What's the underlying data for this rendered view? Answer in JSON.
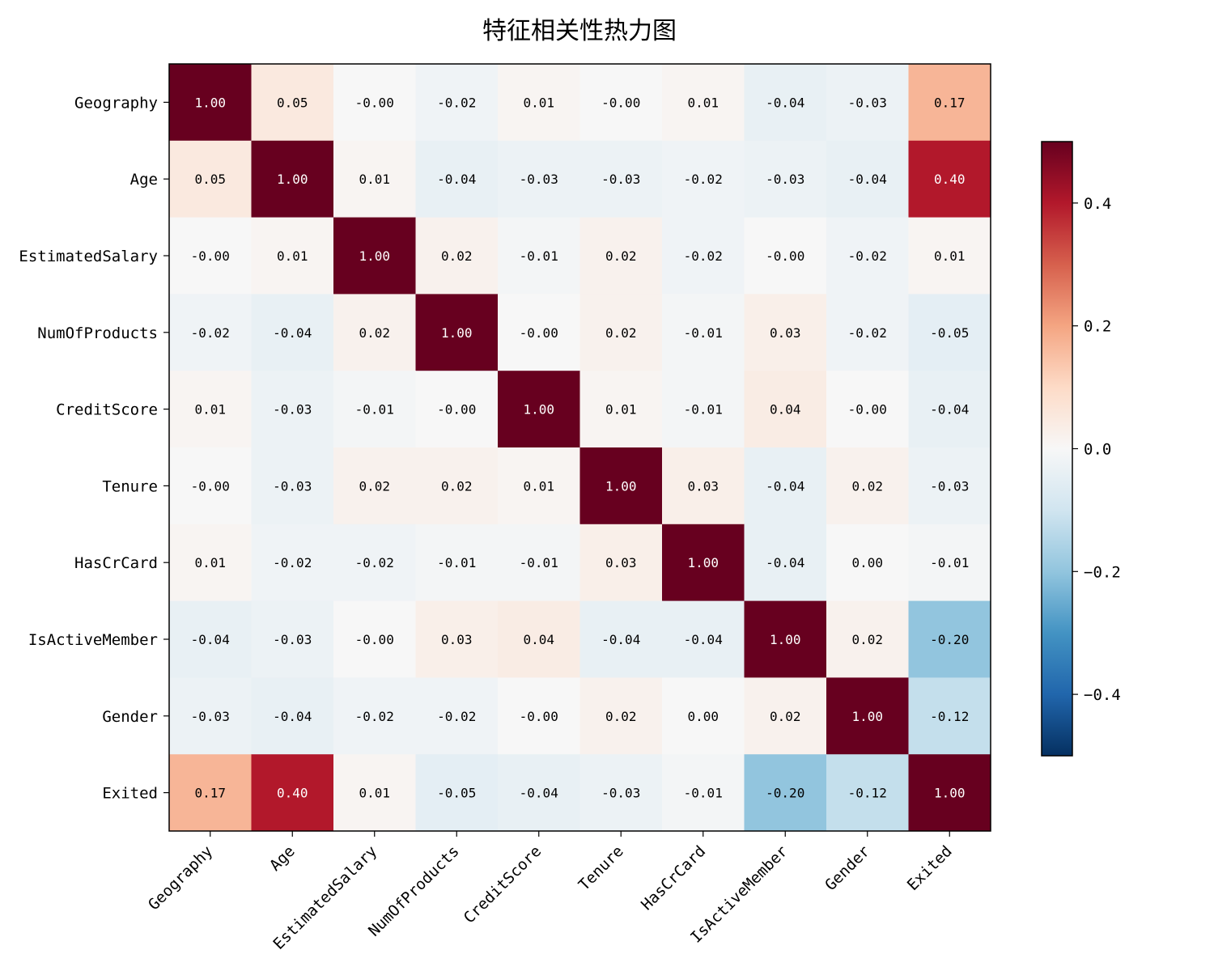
{
  "chart_data": {
    "type": "heatmap",
    "title": "特征相关性热力图",
    "labels": [
      "Geography",
      "Age",
      "EstimatedSalary",
      "NumOfProducts",
      "CreditScore",
      "Tenure",
      "HasCrCard",
      "IsActiveMember",
      "Gender",
      "Exited"
    ],
    "matrix": [
      [
        1.0,
        0.05,
        -0.0,
        -0.02,
        0.01,
        -0.0,
        0.01,
        -0.04,
        -0.03,
        0.17
      ],
      [
        0.05,
        1.0,
        0.01,
        -0.04,
        -0.03,
        -0.03,
        -0.02,
        -0.03,
        -0.04,
        0.4
      ],
      [
        -0.0,
        0.01,
        1.0,
        0.02,
        -0.01,
        0.02,
        -0.02,
        -0.0,
        -0.02,
        0.01
      ],
      [
        -0.02,
        -0.04,
        0.02,
        1.0,
        -0.0,
        0.02,
        -0.01,
        0.03,
        -0.02,
        -0.05
      ],
      [
        0.01,
        -0.03,
        -0.01,
        -0.0,
        1.0,
        0.01,
        -0.01,
        0.04,
        -0.0,
        -0.04
      ],
      [
        -0.0,
        -0.03,
        0.02,
        0.02,
        0.01,
        1.0,
        0.03,
        -0.04,
        0.02,
        -0.03
      ],
      [
        0.01,
        -0.02,
        -0.02,
        -0.01,
        -0.01,
        0.03,
        1.0,
        -0.04,
        0.0,
        -0.01
      ],
      [
        -0.04,
        -0.03,
        -0.0,
        0.03,
        0.04,
        -0.04,
        -0.04,
        1.0,
        0.02,
        -0.2
      ],
      [
        -0.03,
        -0.04,
        -0.02,
        -0.02,
        -0.0,
        0.02,
        0.0,
        0.02,
        1.0,
        -0.12
      ],
      [
        0.17,
        0.4,
        0.01,
        -0.05,
        -0.04,
        -0.03,
        -0.01,
        -0.2,
        -0.12,
        1.0
      ]
    ],
    "cell_labels": [
      [
        "1.00",
        "0.05",
        "-0.00",
        "-0.02",
        "0.01",
        "-0.00",
        "0.01",
        "-0.04",
        "-0.03",
        "0.17"
      ],
      [
        "0.05",
        "1.00",
        "0.01",
        "-0.04",
        "-0.03",
        "-0.03",
        "-0.02",
        "-0.03",
        "-0.04",
        "0.40"
      ],
      [
        "-0.00",
        "0.01",
        "1.00",
        "0.02",
        "-0.01",
        "0.02",
        "-0.02",
        "-0.00",
        "-0.02",
        "0.01"
      ],
      [
        "-0.02",
        "-0.04",
        "0.02",
        "1.00",
        "-0.00",
        "0.02",
        "-0.01",
        "0.03",
        "-0.02",
        "-0.05"
      ],
      [
        "0.01",
        "-0.03",
        "-0.01",
        "-0.00",
        "1.00",
        "0.01",
        "-0.01",
        "0.04",
        "-0.00",
        "-0.04"
      ],
      [
        "-0.00",
        "-0.03",
        "0.02",
        "0.02",
        "0.01",
        "1.00",
        "0.03",
        "-0.04",
        "0.02",
        "-0.03"
      ],
      [
        "0.01",
        "-0.02",
        "-0.02",
        "-0.01",
        "-0.01",
        "0.03",
        "1.00",
        "-0.04",
        "0.00",
        "-0.01"
      ],
      [
        "-0.04",
        "-0.03",
        "-0.00",
        "0.03",
        "0.04",
        "-0.04",
        "-0.04",
        "1.00",
        "0.02",
        "-0.20"
      ],
      [
        "-0.03",
        "-0.04",
        "-0.02",
        "-0.02",
        "-0.00",
        "0.02",
        "0.00",
        "0.02",
        "1.00",
        "-0.12"
      ],
      [
        "0.17",
        "0.40",
        "0.01",
        "-0.05",
        "-0.04",
        "-0.03",
        "-0.01",
        "-0.20",
        "-0.12",
        "1.00"
      ]
    ],
    "colorscale": "RdBu_r",
    "vmin": -0.5,
    "vmax": 0.5,
    "colorbar_ticks": [
      0.4,
      0.2,
      0.0,
      -0.2,
      -0.4
    ],
    "colorbar_tick_labels": [
      "0.4",
      "0.2",
      "0.0",
      "−0.2",
      "−0.4"
    ]
  }
}
